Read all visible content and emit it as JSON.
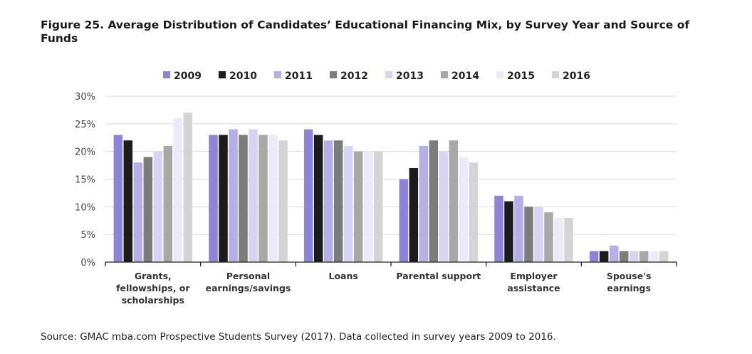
{
  "figure": {
    "title": "Figure 25. Average Distribution of Candidates’ Educational Financing Mix, by Survey Year and Source of Funds",
    "source": "Source: GMAC mba.com Prospective Students Survey (2017). Data collected in survey years 2009 to 2016."
  },
  "chart_data": {
    "type": "bar",
    "title": "Figure 25. Average Distribution of Candidates’ Educational Financing Mix, by Survey Year and Source of Funds",
    "xlabel": "",
    "ylabel": "",
    "ylim": [
      0,
      30
    ],
    "yticks": [
      "0%",
      "5%",
      "10%",
      "15%",
      "20%",
      "25%",
      "30%"
    ],
    "ytick_values": [
      0,
      5,
      10,
      15,
      20,
      25,
      30
    ],
    "grid": true,
    "legend_position": "top-center",
    "categories": [
      [
        "Grants,",
        "fellowships, or",
        "scholarships"
      ],
      [
        "Personal",
        "earnings/savings"
      ],
      [
        "Loans"
      ],
      [
        "Parental support"
      ],
      [
        "Employer",
        "assistance"
      ],
      [
        "Spouse's",
        "earnings"
      ]
    ],
    "series": [
      {
        "name": "2009",
        "color": "#8c84d6",
        "values": [
          23,
          23,
          24,
          15,
          12,
          2
        ]
      },
      {
        "name": "2010",
        "color": "#1c1c1c",
        "values": [
          22,
          23,
          23,
          17,
          11,
          2
        ]
      },
      {
        "name": "2011",
        "color": "#b4afe6",
        "values": [
          18,
          24,
          22,
          21,
          12,
          3
        ]
      },
      {
        "name": "2012",
        "color": "#7c7c7c",
        "values": [
          19,
          23,
          22,
          22,
          10,
          2
        ]
      },
      {
        "name": "2013",
        "color": "#d6d3f3",
        "values": [
          20,
          24,
          21,
          20,
          10,
          2
        ]
      },
      {
        "name": "2014",
        "color": "#a8a8a8",
        "values": [
          21,
          23,
          20,
          22,
          9,
          2
        ]
      },
      {
        "name": "2015",
        "color": "#eceaf9",
        "values": [
          26,
          23,
          20,
          19,
          8,
          2
        ]
      },
      {
        "name": "2016",
        "color": "#d4d4d4",
        "values": [
          27,
          22,
          20,
          18,
          8,
          2
        ]
      }
    ]
  }
}
